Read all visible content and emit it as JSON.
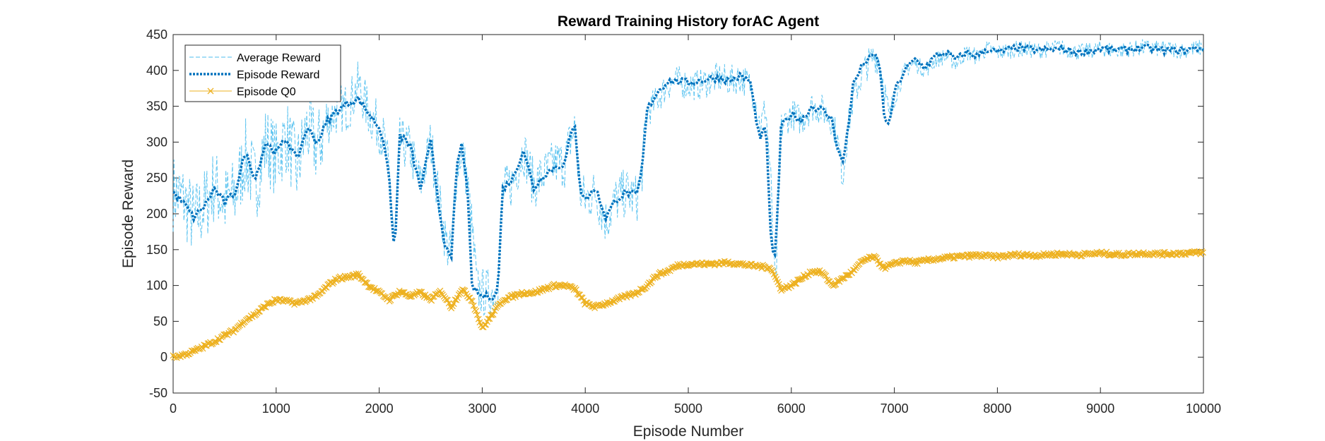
{
  "chart_data": {
    "type": "line",
    "title": "Reward Training History forAC Agent",
    "xlabel": "Episode Number",
    "ylabel": "Episode Reward",
    "xlim": [
      0,
      10000
    ],
    "ylim": [
      -50,
      450
    ],
    "xticks": [
      0,
      1000,
      2000,
      3000,
      4000,
      5000,
      6000,
      7000,
      8000,
      9000,
      10000
    ],
    "yticks": [
      -50,
      0,
      50,
      100,
      150,
      200,
      250,
      300,
      350,
      400,
      450
    ],
    "grid": false,
    "legend_position": "top-left",
    "colors": {
      "average_reward": "#4DBEEE",
      "episode_reward": "#0072BD",
      "episode_q0": "#EDB120"
    },
    "series": [
      {
        "name": "Average Reward",
        "style": "dashed",
        "x": [
          0,
          100,
          200,
          300,
          400,
          500,
          600,
          700,
          800,
          900,
          1000,
          1100,
          1200,
          1300,
          1400,
          1500,
          1600,
          1700,
          1800,
          1900,
          2000,
          2050,
          2100,
          2150,
          2200,
          2300,
          2400,
          2500,
          2600,
          2650,
          2700,
          2750,
          2800,
          2850,
          2900,
          2950,
          3000,
          3100,
          3150,
          3200,
          3300,
          3400,
          3500,
          3600,
          3700,
          3800,
          3850,
          3900,
          3950,
          4000,
          4100,
          4200,
          4300,
          4400,
          4500,
          4550,
          4600,
          4700,
          4800,
          4900,
          5000,
          5100,
          5200,
          5300,
          5400,
          5500,
          5600,
          5650,
          5700,
          5750,
          5800,
          5830,
          5850,
          5900,
          6000,
          6100,
          6200,
          6300,
          6400,
          6450,
          6500,
          6550,
          6600,
          6700,
          6800,
          6850,
          6900,
          6950,
          7000,
          7100,
          7200,
          7300,
          7400,
          7500,
          7600,
          7700,
          7800,
          7900,
          8000,
          8200,
          8400,
          8600,
          8800,
          9000,
          9200,
          9400,
          9600,
          9800,
          10000
        ],
        "y": [
          230,
          220,
          190,
          210,
          240,
          215,
          225,
          280,
          240,
          300,
          275,
          310,
          260,
          320,
          290,
          330,
          345,
          350,
          380,
          340,
          320,
          300,
          250,
          160,
          300,
          290,
          240,
          300,
          200,
          160,
          140,
          260,
          290,
          250,
          180,
          95,
          90,
          90,
          100,
          230,
          245,
          290,
          240,
          255,
          270,
          270,
          300,
          320,
          230,
          220,
          230,
          190,
          220,
          230,
          220,
          260,
          340,
          360,
          380,
          385,
          380,
          380,
          385,
          390,
          385,
          390,
          380,
          360,
          320,
          350,
          250,
          130,
          100,
          320,
          340,
          330,
          350,
          345,
          330,
          300,
          250,
          320,
          360,
          400,
          420,
          415,
          380,
          330,
          360,
          400,
          410,
          400,
          415,
          420,
          410,
          425,
          420,
          430,
          425,
          430,
          428,
          432,
          425,
          430,
          428,
          432,
          430,
          428,
          432
        ]
      },
      {
        "name": "Episode Reward",
        "style": "dotted",
        "x": [
          0,
          100,
          200,
          300,
          400,
          500,
          600,
          700,
          800,
          900,
          1000,
          1100,
          1200,
          1300,
          1400,
          1500,
          1600,
          1700,
          1800,
          1900,
          2000,
          2050,
          2100,
          2150,
          2200,
          2300,
          2400,
          2500,
          2600,
          2650,
          2700,
          2750,
          2800,
          2850,
          2900,
          2950,
          3000,
          3100,
          3150,
          3200,
          3300,
          3400,
          3500,
          3600,
          3700,
          3800,
          3850,
          3900,
          3950,
          4000,
          4100,
          4200,
          4300,
          4400,
          4500,
          4550,
          4600,
          4700,
          4800,
          4900,
          5000,
          5100,
          5200,
          5300,
          5400,
          5500,
          5600,
          5650,
          5700,
          5750,
          5800,
          5830,
          5850,
          5900,
          6000,
          6100,
          6200,
          6300,
          6400,
          6450,
          6500,
          6550,
          6600,
          6700,
          6800,
          6850,
          6900,
          6950,
          7000,
          7100,
          7200,
          7300,
          7400,
          7500,
          7600,
          7700,
          7800,
          7900,
          8000,
          8200,
          8400,
          8600,
          8800,
          9000,
          9200,
          9400,
          9600,
          9800,
          10000
        ],
        "y": [
          230,
          215,
          195,
          210,
          235,
          215,
          230,
          285,
          250,
          300,
          285,
          305,
          275,
          320,
          300,
          330,
          345,
          355,
          360,
          340,
          320,
          300,
          240,
          140,
          310,
          295,
          235,
          300,
          190,
          150,
          135,
          265,
          295,
          250,
          100,
          90,
          85,
          85,
          90,
          235,
          250,
          290,
          235,
          255,
          265,
          270,
          305,
          325,
          235,
          220,
          235,
          195,
          220,
          230,
          225,
          260,
          345,
          370,
          385,
          385,
          383,
          385,
          388,
          390,
          385,
          392,
          385,
          340,
          300,
          330,
          170,
          140,
          150,
          320,
          340,
          330,
          350,
          345,
          330,
          290,
          270,
          320,
          380,
          410,
          420,
          415,
          340,
          320,
          370,
          400,
          415,
          405,
          420,
          425,
          415,
          425,
          420,
          430,
          425,
          432,
          428,
          430,
          425,
          430,
          428,
          432,
          428,
          428,
          432
        ]
      },
      {
        "name": "Episode Q0",
        "style": "solid-x-marker",
        "x": [
          0,
          100,
          200,
          300,
          400,
          500,
          600,
          700,
          800,
          900,
          1000,
          1100,
          1200,
          1300,
          1400,
          1500,
          1600,
          1700,
          1800,
          1900,
          2000,
          2100,
          2200,
          2300,
          2400,
          2500,
          2600,
          2700,
          2800,
          2900,
          3000,
          3100,
          3200,
          3300,
          3400,
          3500,
          3600,
          3700,
          3800,
          3900,
          4000,
          4100,
          4200,
          4300,
          4400,
          4500,
          4600,
          4700,
          4800,
          4900,
          5000,
          5200,
          5400,
          5600,
          5800,
          5900,
          6000,
          6100,
          6200,
          6300,
          6400,
          6500,
          6600,
          6700,
          6800,
          6900,
          7000,
          7100,
          7200,
          7400,
          7600,
          7800,
          8000,
          8200,
          8400,
          8600,
          8800,
          9000,
          9200,
          9400,
          9600,
          9800,
          10000
        ],
        "y": [
          0,
          3,
          8,
          15,
          22,
          30,
          38,
          52,
          60,
          72,
          80,
          78,
          75,
          80,
          85,
          100,
          110,
          112,
          115,
          100,
          90,
          80,
          92,
          85,
          90,
          80,
          92,
          70,
          95,
          80,
          40,
          60,
          80,
          85,
          90,
          90,
          95,
          100,
          100,
          95,
          75,
          70,
          75,
          80,
          85,
          90,
          100,
          115,
          120,
          128,
          130,
          130,
          132,
          128,
          125,
          95,
          100,
          110,
          120,
          118,
          100,
          110,
          120,
          135,
          140,
          125,
          130,
          135,
          132,
          137,
          140,
          142,
          140,
          143,
          142,
          144,
          143,
          145,
          143,
          145,
          144,
          145,
          146
        ]
      }
    ]
  }
}
